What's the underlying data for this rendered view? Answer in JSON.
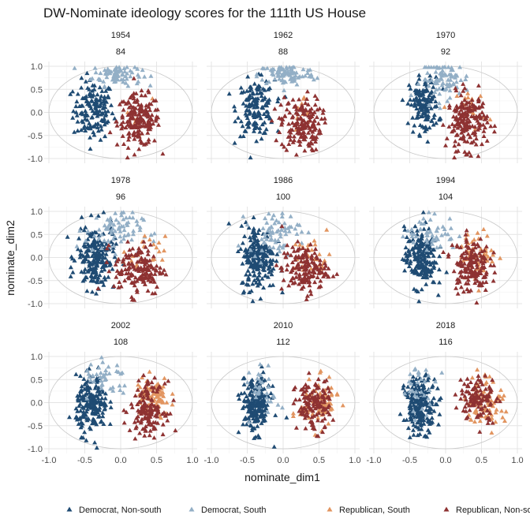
{
  "chart_data": {
    "type": "scatter",
    "title": "DW-Nominate ideology scores for the 111th US House",
    "xlabel": "nominate_dim1",
    "ylabel": "nominate_dim2",
    "xlim": [
      -1.0,
      1.0
    ],
    "ylim": [
      -1.0,
      1.0
    ],
    "x_ticks": [
      "-1.0",
      "-0.5",
      "0.0",
      "0.5",
      "1.0"
    ],
    "y_ticks": [
      "1.0",
      "0.5",
      "0.0",
      "-0.5",
      "-1.0"
    ],
    "grid": true,
    "legend_position": "bottom",
    "marker": "triangle",
    "reference_shape": "unit-ellipse",
    "legend": [
      {
        "name": "Democrat, Non-south",
        "color": "#1f4b73"
      },
      {
        "name": "Democrat, South",
        "color": "#93afc6"
      },
      {
        "name": "Republican, South",
        "color": "#e29560"
      },
      {
        "name": "Republican, Non-south",
        "color": "#8e3232"
      }
    ],
    "panels": [
      {
        "strip1": "1954",
        "strip2": "84",
        "clusters": [
          {
            "group": 0,
            "cx": -0.38,
            "cy": 0.05,
            "sx": 0.14,
            "sy": 0.32,
            "n": 150
          },
          {
            "group": 1,
            "cx": -0.05,
            "cy": 0.82,
            "sx": 0.17,
            "sy": 0.12,
            "n": 85
          },
          {
            "group": 2,
            "cx": 0.3,
            "cy": -0.05,
            "sx": 0.07,
            "sy": 0.2,
            "n": 10
          },
          {
            "group": 3,
            "cx": 0.25,
            "cy": -0.18,
            "sx": 0.15,
            "sy": 0.28,
            "n": 180
          }
        ]
      },
      {
        "strip1": "1962",
        "strip2": "88",
        "clusters": [
          {
            "group": 0,
            "cx": -0.38,
            "cy": 0.1,
            "sx": 0.13,
            "sy": 0.3,
            "n": 150
          },
          {
            "group": 1,
            "cx": 0.05,
            "cy": 0.82,
            "sx": 0.2,
            "sy": 0.12,
            "n": 90
          },
          {
            "group": 2,
            "cx": 0.3,
            "cy": -0.05,
            "sx": 0.1,
            "sy": 0.2,
            "n": 12
          },
          {
            "group": 3,
            "cx": 0.25,
            "cy": -0.25,
            "sx": 0.14,
            "sy": 0.3,
            "n": 170
          }
        ]
      },
      {
        "strip1": "1970",
        "strip2": "92",
        "clusters": [
          {
            "group": 0,
            "cx": -0.3,
            "cy": 0.15,
            "sx": 0.1,
            "sy": 0.3,
            "n": 140
          },
          {
            "group": 1,
            "cx": 0.0,
            "cy": 0.72,
            "sx": 0.17,
            "sy": 0.2,
            "n": 85
          },
          {
            "group": 2,
            "cx": 0.36,
            "cy": 0.08,
            "sx": 0.1,
            "sy": 0.22,
            "n": 20
          },
          {
            "group": 3,
            "cx": 0.3,
            "cy": -0.2,
            "sx": 0.14,
            "sy": 0.3,
            "n": 180
          }
        ]
      },
      {
        "strip1": "1978",
        "strip2": "96",
        "clusters": [
          {
            "group": 0,
            "cx": -0.35,
            "cy": 0.0,
            "sx": 0.13,
            "sy": 0.35,
            "n": 200
          },
          {
            "group": 1,
            "cx": -0.1,
            "cy": 0.58,
            "sx": 0.2,
            "sy": 0.22,
            "n": 75
          },
          {
            "group": 2,
            "cx": 0.32,
            "cy": 0.02,
            "sx": 0.15,
            "sy": 0.22,
            "n": 25
          },
          {
            "group": 3,
            "cx": 0.25,
            "cy": -0.25,
            "sx": 0.17,
            "sy": 0.28,
            "n": 150
          }
        ]
      },
      {
        "strip1": "1986",
        "strip2": "100",
        "clusters": [
          {
            "group": 0,
            "cx": -0.35,
            "cy": 0.0,
            "sx": 0.12,
            "sy": 0.35,
            "n": 200
          },
          {
            "group": 1,
            "cx": -0.12,
            "cy": 0.55,
            "sx": 0.18,
            "sy": 0.22,
            "n": 70
          },
          {
            "group": 2,
            "cx": 0.4,
            "cy": 0.0,
            "sx": 0.13,
            "sy": 0.22,
            "n": 35
          },
          {
            "group": 3,
            "cx": 0.3,
            "cy": -0.25,
            "sx": 0.16,
            "sy": 0.26,
            "n": 150
          }
        ]
      },
      {
        "strip1": "1994",
        "strip2": "104",
        "clusters": [
          {
            "group": 0,
            "cx": -0.35,
            "cy": 0.0,
            "sx": 0.11,
            "sy": 0.32,
            "n": 190
          },
          {
            "group": 1,
            "cx": -0.2,
            "cy": 0.55,
            "sx": 0.18,
            "sy": 0.2,
            "n": 50
          },
          {
            "group": 2,
            "cx": 0.45,
            "cy": 0.05,
            "sx": 0.12,
            "sy": 0.25,
            "n": 65
          },
          {
            "group": 3,
            "cx": 0.35,
            "cy": -0.15,
            "sx": 0.13,
            "sy": 0.3,
            "n": 160
          }
        ]
      },
      {
        "strip1": "2002",
        "strip2": "108",
        "clusters": [
          {
            "group": 0,
            "cx": -0.4,
            "cy": -0.05,
            "sx": 0.11,
            "sy": 0.3,
            "n": 190
          },
          {
            "group": 1,
            "cx": -0.2,
            "cy": 0.48,
            "sx": 0.16,
            "sy": 0.22,
            "n": 40
          },
          {
            "group": 2,
            "cx": 0.45,
            "cy": 0.1,
            "sx": 0.12,
            "sy": 0.22,
            "n": 90
          },
          {
            "group": 3,
            "cx": 0.38,
            "cy": -0.12,
            "sx": 0.12,
            "sy": 0.28,
            "n": 140
          }
        ]
      },
      {
        "strip1": "2010",
        "strip2": "112",
        "clusters": [
          {
            "group": 0,
            "cx": -0.38,
            "cy": -0.05,
            "sx": 0.1,
            "sy": 0.3,
            "n": 200
          },
          {
            "group": 1,
            "cx": -0.25,
            "cy": 0.25,
            "sx": 0.1,
            "sy": 0.25,
            "n": 30
          },
          {
            "group": 2,
            "cx": 0.5,
            "cy": 0.0,
            "sx": 0.13,
            "sy": 0.25,
            "n": 90
          },
          {
            "group": 3,
            "cx": 0.42,
            "cy": -0.05,
            "sx": 0.12,
            "sy": 0.28,
            "n": 130
          }
        ]
      },
      {
        "strip1": "2018",
        "strip2": "116",
        "clusters": [
          {
            "group": 0,
            "cx": -0.35,
            "cy": -0.05,
            "sx": 0.11,
            "sy": 0.3,
            "n": 200
          },
          {
            "group": 1,
            "cx": -0.35,
            "cy": 0.3,
            "sx": 0.12,
            "sy": 0.25,
            "n": 30
          },
          {
            "group": 2,
            "cx": 0.55,
            "cy": 0.05,
            "sx": 0.13,
            "sy": 0.28,
            "n": 90
          },
          {
            "group": 3,
            "cx": 0.45,
            "cy": 0.1,
            "sx": 0.13,
            "sy": 0.25,
            "n": 110
          }
        ]
      }
    ]
  }
}
